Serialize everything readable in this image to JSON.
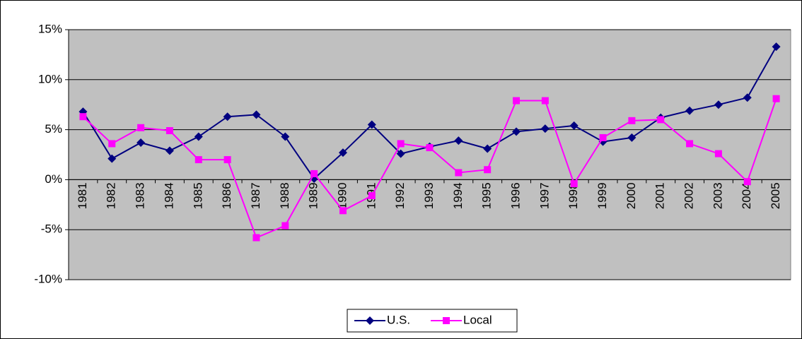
{
  "chart_data": {
    "type": "line",
    "categories": [
      "1981",
      "1982",
      "1983",
      "1984",
      "1985",
      "1986",
      "1987",
      "1988",
      "1989",
      "1990",
      "1991",
      "1992",
      "1993",
      "1994",
      "1995",
      "1996",
      "1997",
      "1998",
      "1999",
      "2000",
      "2001",
      "2002",
      "2003",
      "2004",
      "2005"
    ],
    "series": [
      {
        "name": "U.S.",
        "color": "#000080",
        "marker": "diamond",
        "values": [
          6.8,
          2.1,
          3.7,
          2.9,
          4.3,
          6.3,
          6.5,
          4.3,
          0.1,
          2.7,
          5.5,
          2.6,
          3.3,
          3.9,
          3.1,
          4.8,
          5.1,
          5.4,
          3.8,
          4.2,
          6.2,
          6.9,
          7.5,
          8.2,
          13.3
        ]
      },
      {
        "name": "Local",
        "color": "#ff00ff",
        "marker": "square",
        "values": [
          6.3,
          3.6,
          5.2,
          4.9,
          2.0,
          2.0,
          -5.8,
          -4.6,
          0.6,
          -3.1,
          -1.6,
          3.6,
          3.2,
          0.7,
          1.0,
          7.9,
          7.9,
          -0.4,
          4.2,
          5.9,
          6.0,
          3.6,
          2.6,
          -0.2,
          8.1
        ]
      }
    ],
    "ylim": [
      -10,
      15
    ],
    "yticks": [
      {
        "value": -10,
        "label": "-10%"
      },
      {
        "value": -5,
        "label": "-5%"
      },
      {
        "value": 0,
        "label": "0%"
      },
      {
        "value": 5,
        "label": "5%"
      },
      {
        "value": 10,
        "label": "10%"
      },
      {
        "value": 15,
        "label": "15%"
      }
    ],
    "grid": true,
    "plot_background": "#c0c0c0",
    "legend": "bottom"
  }
}
